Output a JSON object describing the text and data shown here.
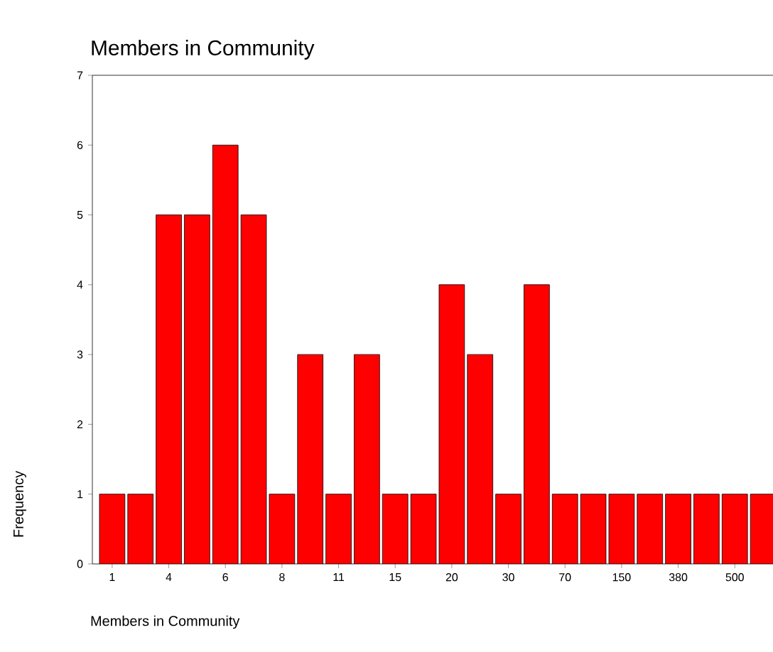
{
  "chart_data": {
    "type": "bar",
    "title": "Members in Community",
    "xlabel": "Members in Community",
    "ylabel": "Frequency",
    "categories": [
      "1",
      null,
      "4",
      null,
      "6",
      null,
      "8",
      null,
      "11",
      null,
      "15",
      null,
      "20",
      null,
      "30",
      null,
      "70",
      null,
      "150",
      null,
      "380",
      null,
      "500",
      null
    ],
    "values": [
      1,
      1,
      5,
      5,
      6,
      5,
      1,
      3,
      1,
      3,
      1,
      1,
      4,
      3,
      1,
      4,
      1,
      1,
      1,
      1,
      1,
      1,
      1,
      1
    ],
    "color": "#ff0000",
    "ylim": [
      0,
      7
    ],
    "yticks": [
      0,
      1,
      2,
      3,
      4,
      5,
      6,
      7
    ]
  }
}
